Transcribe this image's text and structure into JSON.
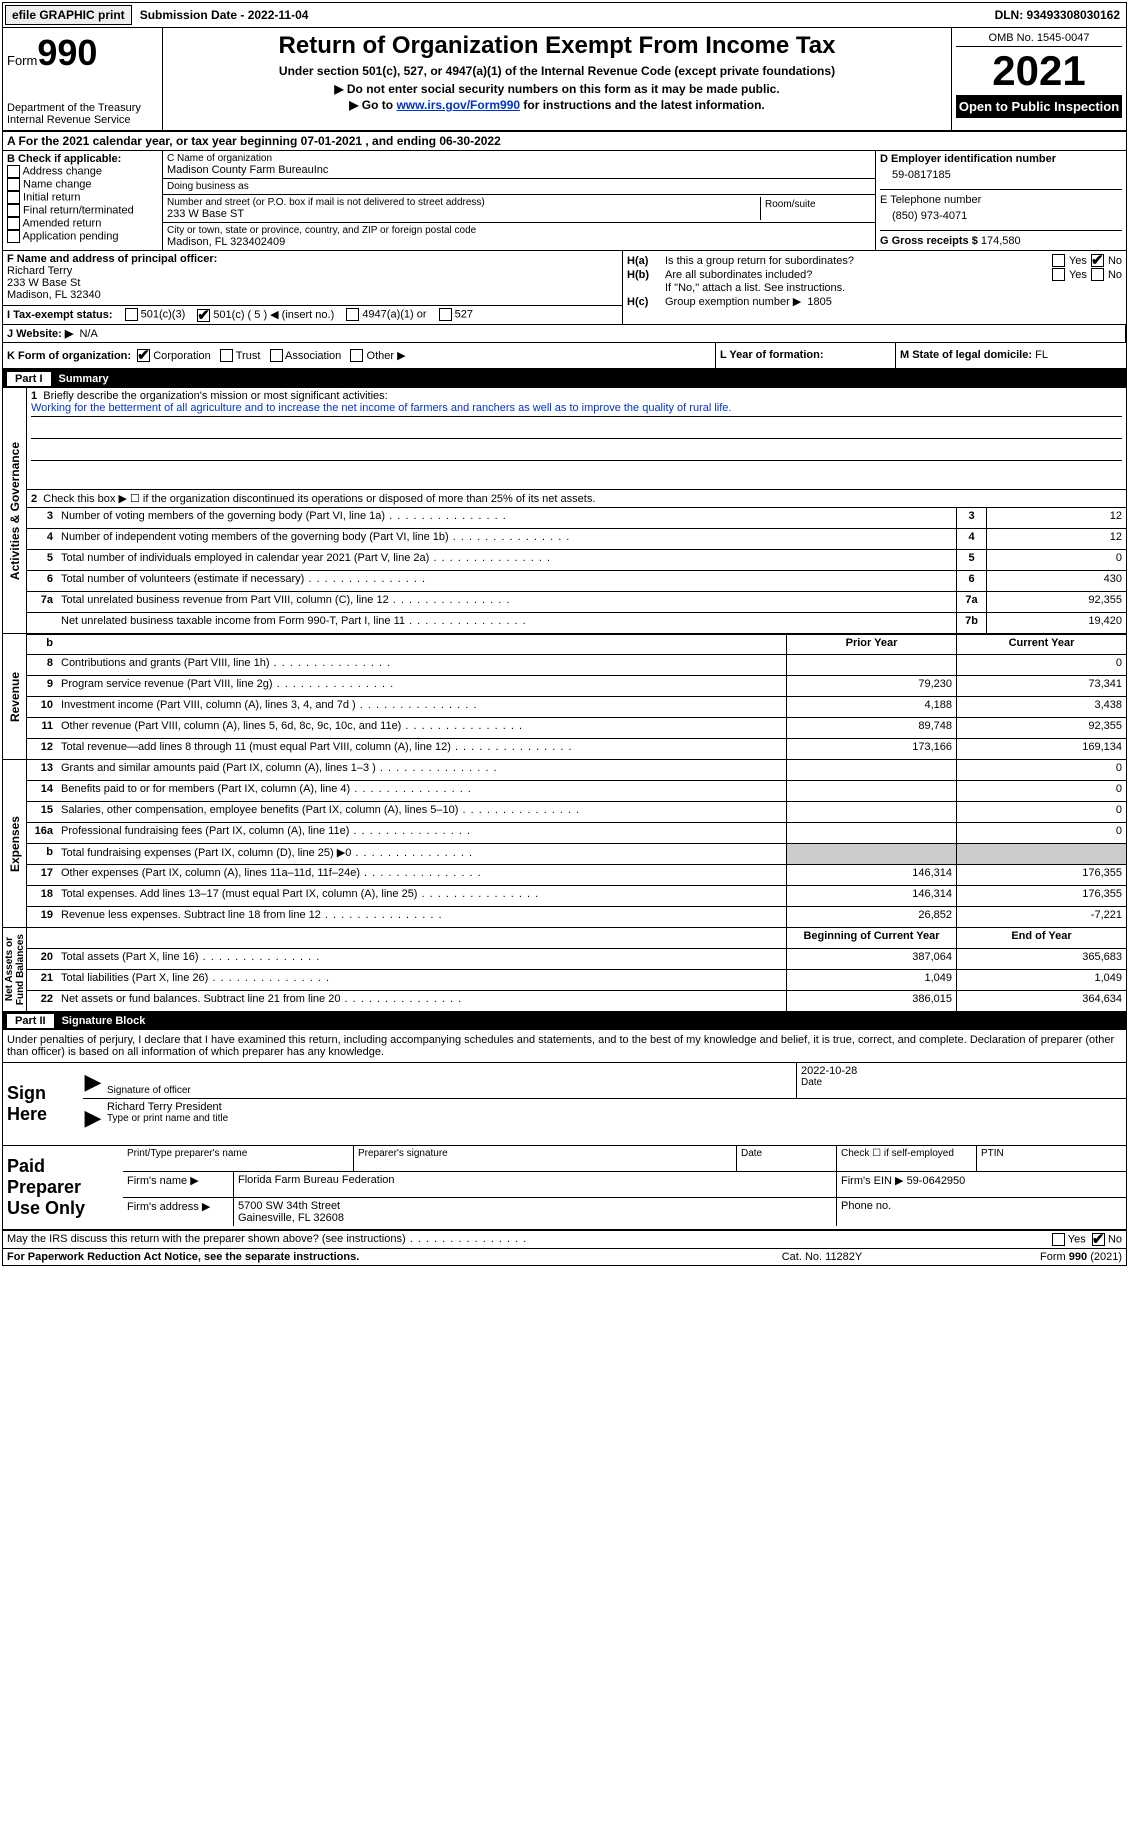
{
  "topbar": {
    "efile": "efile GRAPHIC print",
    "submission": "Submission Date - 2022-11-04",
    "dln": "DLN: 93493308030162"
  },
  "header": {
    "form": "Form",
    "num": "990",
    "dept": "Department of the Treasury\nInternal Revenue Service",
    "title": "Return of Organization Exempt From Income Tax",
    "sub1": "Under section 501(c), 527, or 4947(a)(1) of the Internal Revenue Code (except private foundations)",
    "sub2": "▶ Do not enter social security numbers on this form as it may be made public.",
    "sub3_pre": "▶ Go to ",
    "sub3_link": "www.irs.gov/Form990",
    "sub3_post": " for instructions and the latest information.",
    "omb": "OMB No. 1545-0047",
    "year": "2021",
    "open": "Open to Public Inspection"
  },
  "cal": "A  For the 2021 calendar year, or tax year beginning 07-01-2021    , and ending 06-30-2022",
  "b": {
    "title": "B Check if applicable:",
    "items": [
      "Address change",
      "Name change",
      "Initial return",
      "Final return/terminated",
      "Amended return",
      "Application pending"
    ]
  },
  "c": {
    "name_lbl": "C Name of organization",
    "name": "Madison County Farm BureauInc",
    "dba_lbl": "Doing business as",
    "dba": "",
    "addr_lbl": "Number and street (or P.O. box if mail is not delivered to street address)",
    "room_lbl": "Room/suite",
    "addr": "233 W Base ST",
    "city_lbl": "City or town, state or province, country, and ZIP or foreign postal code",
    "city": "Madison, FL  323402409"
  },
  "d": {
    "lbl": "D Employer identification number",
    "val": "59-0817185"
  },
  "e": {
    "lbl": "E Telephone number",
    "val": "(850) 973-4071"
  },
  "g": {
    "lbl": "G Gross receipts $",
    "val": "174,580"
  },
  "f": {
    "lbl": "F  Name and address of principal officer:",
    "name": "Richard Terry",
    "addr": "233 W Base St",
    "city": "Madison, FL  32340"
  },
  "h": {
    "a_lbl": "H(a)",
    "a_txt": "Is this a group return for subordinates?",
    "b_lbl": "H(b)",
    "b_txt": "Are all subordinates included?",
    "b_note": "If \"No,\" attach a list. See instructions.",
    "c_lbl": "H(c)",
    "c_txt": "Group exemption number ▶",
    "c_val": "1805",
    "yes": "Yes",
    "no": "No"
  },
  "i": {
    "lbl": "I   Tax-exempt status:",
    "opts": [
      "501(c)(3)",
      "501(c) ( 5 ) ◀ (insert no.)",
      "4947(a)(1) or",
      "527"
    ]
  },
  "j": {
    "lbl": "J   Website: ▶",
    "val": "N/A"
  },
  "k": {
    "lbl": "K Form of organization:",
    "opts": [
      "Corporation",
      "Trust",
      "Association",
      "Other ▶"
    ]
  },
  "l": {
    "lbl": "L Year of formation:",
    "val": ""
  },
  "m": {
    "lbl": "M State of legal domicile:",
    "val": "FL"
  },
  "part1": {
    "num": "Part I",
    "title": "Summary"
  },
  "vtabs": {
    "ag": "Activities & Governance",
    "rev": "Revenue",
    "exp": "Expenses",
    "na": "Net Assets or\nFund Balances"
  },
  "s1": {
    "lbl": "Briefly describe the organization's mission or most significant activities:",
    "txt": "Working for the betterment of all agriculture and to increase the net income of farmers and ranchers as well as to improve the quality of rural life."
  },
  "s2": "Check this box ▶ ☐ if the organization discontinued its operations or disposed of more than 25% of its net assets.",
  "lines_ag": [
    {
      "n": "3",
      "d": "Number of voting members of the governing body (Part VI, line 1a)",
      "b": "3",
      "v": "12"
    },
    {
      "n": "4",
      "d": "Number of independent voting members of the governing body (Part VI, line 1b)",
      "b": "4",
      "v": "12"
    },
    {
      "n": "5",
      "d": "Total number of individuals employed in calendar year 2021 (Part V, line 2a)",
      "b": "5",
      "v": "0"
    },
    {
      "n": "6",
      "d": "Total number of volunteers (estimate if necessary)",
      "b": "6",
      "v": "430"
    },
    {
      "n": "7a",
      "d": "Total unrelated business revenue from Part VIII, column (C), line 12",
      "b": "7a",
      "v": "92,355"
    },
    {
      "n": "",
      "d": "Net unrelated business taxable income from Form 990-T, Part I, line 11",
      "b": "7b",
      "v": "19,420"
    }
  ],
  "col_hdrs": {
    "b": "b",
    "prior": "Prior Year",
    "curr": "Current Year"
  },
  "lines_rev": [
    {
      "n": "8",
      "d": "Contributions and grants (Part VIII, line 1h)",
      "p": "",
      "c": "0"
    },
    {
      "n": "9",
      "d": "Program service revenue (Part VIII, line 2g)",
      "p": "79,230",
      "c": "73,341"
    },
    {
      "n": "10",
      "d": "Investment income (Part VIII, column (A), lines 3, 4, and 7d )",
      "p": "4,188",
      "c": "3,438"
    },
    {
      "n": "11",
      "d": "Other revenue (Part VIII, column (A), lines 5, 6d, 8c, 9c, 10c, and 11e)",
      "p": "89,748",
      "c": "92,355"
    },
    {
      "n": "12",
      "d": "Total revenue—add lines 8 through 11 (must equal Part VIII, column (A), line 12)",
      "p": "173,166",
      "c": "169,134"
    }
  ],
  "lines_exp": [
    {
      "n": "13",
      "d": "Grants and similar amounts paid (Part IX, column (A), lines 1–3 )",
      "p": "",
      "c": "0"
    },
    {
      "n": "14",
      "d": "Benefits paid to or for members (Part IX, column (A), line 4)",
      "p": "",
      "c": "0"
    },
    {
      "n": "15",
      "d": "Salaries, other compensation, employee benefits (Part IX, column (A), lines 5–10)",
      "p": "",
      "c": "0"
    },
    {
      "n": "16a",
      "d": "Professional fundraising fees (Part IX, column (A), line 11e)",
      "p": "",
      "c": "0"
    },
    {
      "n": "b",
      "d": "Total fundraising expenses (Part IX, column (D), line 25) ▶0",
      "p": "",
      "c": "",
      "shade": true
    },
    {
      "n": "17",
      "d": "Other expenses (Part IX, column (A), lines 11a–11d, 11f–24e)",
      "p": "146,314",
      "c": "176,355"
    },
    {
      "n": "18",
      "d": "Total expenses. Add lines 13–17 (must equal Part IX, column (A), line 25)",
      "p": "146,314",
      "c": "176,355"
    },
    {
      "n": "19",
      "d": "Revenue less expenses. Subtract line 18 from line 12",
      "p": "26,852",
      "c": "-7,221"
    }
  ],
  "col_hdrs2": {
    "prior": "Beginning of Current Year",
    "curr": "End of Year"
  },
  "lines_na": [
    {
      "n": "20",
      "d": "Total assets (Part X, line 16)",
      "p": "387,064",
      "c": "365,683"
    },
    {
      "n": "21",
      "d": "Total liabilities (Part X, line 26)",
      "p": "1,049",
      "c": "1,049"
    },
    {
      "n": "22",
      "d": "Net assets or fund balances. Subtract line 21 from line 20",
      "p": "386,015",
      "c": "364,634"
    }
  ],
  "part2": {
    "num": "Part II",
    "title": "Signature Block"
  },
  "decl": "Under penalties of perjury, I declare that I have examined this return, including accompanying schedules and statements, and to the best of my knowledge and belief, it is true, correct, and complete. Declaration of preparer (other than officer) is based on all information of which preparer has any knowledge.",
  "sign": {
    "here": "Sign Here",
    "sig_lbl": "Signature of officer",
    "date_lbl": "Date",
    "date": "2022-10-28",
    "name": "Richard Terry President",
    "name_lbl": "Type or print name and title"
  },
  "prep": {
    "title": "Paid Preparer Use Only",
    "print_lbl": "Print/Type preparer's name",
    "sig_lbl": "Preparer's signature",
    "date_lbl": "Date",
    "check_lbl": "Check ☐ if self-employed",
    "ptin_lbl": "PTIN",
    "firm_name_lbl": "Firm's name      ▶",
    "firm_name": "Florida Farm Bureau Federation",
    "firm_ein_lbl": "Firm's EIN ▶",
    "firm_ein": "59-0642950",
    "firm_addr_lbl": "Firm's address ▶",
    "firm_addr": "5700 SW 34th Street",
    "firm_city": "Gainesville, FL  32608",
    "phone_lbl": "Phone no."
  },
  "footer_q": {
    "txt": "May the IRS discuss this return with the preparer shown above? (see instructions)",
    "yes": "Yes",
    "no": "No"
  },
  "footer": {
    "pra": "For Paperwork Reduction Act Notice, see the separate instructions.",
    "cat": "Cat. No. 11282Y",
    "form": "Form 990 (2021)"
  }
}
